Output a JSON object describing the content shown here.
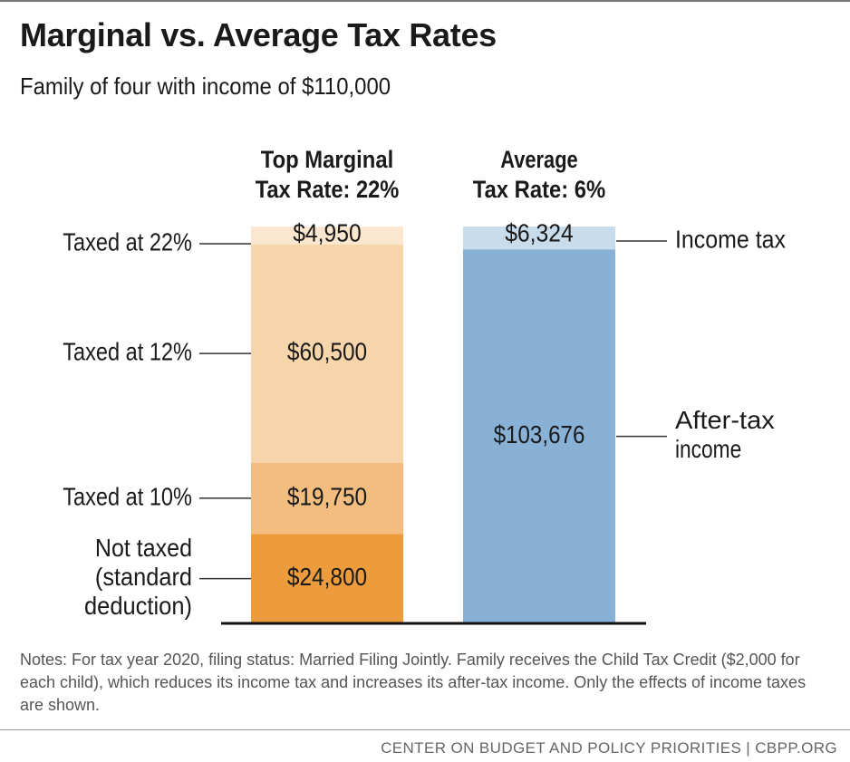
{
  "title": "Marginal vs. Average Tax Rates",
  "subtitle": "Family of four with income of $110,000",
  "notes": "Notes: For tax year 2020, filing status: Married Filing Jointly. Family receives the Child Tax Credit ($2,000 for each child), which reduces its income tax and increases its after-tax income. Only the effects of income taxes are shown.",
  "source": "CENTER ON BUDGET AND POLICY PRIORITIES | CBPP.ORG",
  "chart_data": {
    "type": "bar",
    "stacked": true,
    "title": "Marginal vs. Average Tax Rates",
    "total": 110000,
    "bars": [
      {
        "id": "marginal",
        "heading_lines": [
          "Top Marginal",
          "Tax Rate: 22%"
        ],
        "label_side": "left",
        "segments": [
          {
            "name": "Not taxed (standard deduction)",
            "label_lines": [
              "Not taxed",
              "(standard",
              "deduction)"
            ],
            "value": 24800,
            "value_label": "$24,800",
            "color": "#ec9c3c"
          },
          {
            "name": "Taxed at 10%",
            "label_lines": [
              "Taxed at 10%"
            ],
            "value": 19750,
            "value_label": "$19,750",
            "color": "#f2bd7f"
          },
          {
            "name": "Taxed at 12%",
            "label_lines": [
              "Taxed at 12%"
            ],
            "value": 60500,
            "value_label": "$60,500",
            "color": "#f7d5aa"
          },
          {
            "name": "Taxed at 22%",
            "label_lines": [
              "Taxed at 22%"
            ],
            "value": 4950,
            "value_label": "$4,950",
            "color": "#fbe6cf"
          }
        ]
      },
      {
        "id": "average",
        "heading_lines": [
          "Average",
          "Tax Rate: 6%"
        ],
        "label_side": "right",
        "segments": [
          {
            "name": "After-tax income",
            "label_lines": [
              "After-tax",
              "income"
            ],
            "value": 103676,
            "value_label": "$103,676",
            "color": "#89b1d5"
          },
          {
            "name": "Income tax",
            "label_lines": [
              "Income tax"
            ],
            "value": 6324,
            "value_label": "$6,324",
            "color": "#c8dcec"
          }
        ]
      }
    ]
  }
}
